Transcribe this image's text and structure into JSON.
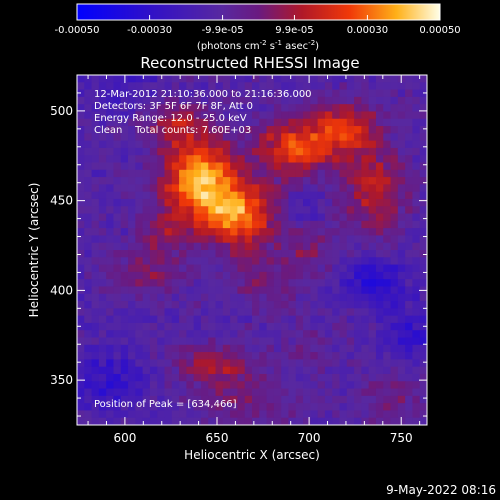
{
  "chart_data": {
    "type": "heatmap",
    "title": "Reconstructed RHESSI Image",
    "xlabel": "Heliocentric X (arcsec)",
    "ylabel": "Heliocentric Y (arcsec)",
    "xlim": [
      574,
      764
    ],
    "ylim": [
      325,
      520
    ],
    "x_ticks": [
      {
        "value": 600,
        "label": "600"
      },
      {
        "value": 650,
        "label": "650"
      },
      {
        "value": 700,
        "label": "700"
      },
      {
        "value": 750,
        "label": "750"
      }
    ],
    "y_ticks": [
      {
        "value": 350,
        "label": "350"
      },
      {
        "value": 400,
        "label": "400"
      },
      {
        "value": 450,
        "label": "450"
      },
      {
        "value": 500,
        "label": "500"
      }
    ],
    "colorbar": {
      "range": [
        -0.0005,
        0.0005
      ],
      "ticks": [
        {
          "value": -0.0005,
          "label": "-0.00050"
        },
        {
          "value": -0.0003,
          "label": "-0.00030"
        },
        {
          "value": -9.9e-05,
          "label": "-9.9e-05"
        },
        {
          "value": 9.9e-05,
          "label": "9.9e-05"
        },
        {
          "value": 0.0003,
          "label": "0.00030"
        },
        {
          "value": 0.0005,
          "label": "0.00050"
        }
      ],
      "unit_main": "(photons cm",
      "unit_exp1": "-2",
      "unit_mid1": " s",
      "unit_exp2": "-1",
      "unit_mid2": " asec",
      "unit_exp3": "-2",
      "unit_end": ")"
    },
    "annotations": [
      "12-Mar-2012 21:10:36.000 to 21:16:36.000",
      "Detectors: 3F 5F 6F 7F 8F, Att 0",
      "Energy Range: 12.0 - 25.0 keV",
      "Clean    Total counts: 7.60E+03"
    ],
    "peak_label": "Position of Peak = [634,466]",
    "peak": [
      634,
      466
    ],
    "sources": [
      {
        "x": 640,
        "y": 462,
        "amp": 0.0005,
        "sx": 14,
        "sy": 16
      },
      {
        "x": 662,
        "y": 442,
        "amp": 0.00042,
        "sx": 14,
        "sy": 13
      },
      {
        "x": 692,
        "y": 480,
        "amp": 0.00036,
        "sx": 14,
        "sy": 11
      },
      {
        "x": 720,
        "y": 490,
        "amp": 0.00034,
        "sx": 12,
        "sy": 10
      },
      {
        "x": 735,
        "y": 455,
        "amp": 0.00026,
        "sx": 12,
        "sy": 16
      },
      {
        "x": 628,
        "y": 493,
        "amp": 0.0002,
        "sx": 12,
        "sy": 8
      },
      {
        "x": 620,
        "y": 432,
        "amp": 0.00018,
        "sx": 8,
        "sy": 8
      },
      {
        "x": 612,
        "y": 410,
        "amp": 0.00015,
        "sx": 16,
        "sy": 9
      },
      {
        "x": 650,
        "y": 358,
        "amp": 0.00022,
        "sx": 16,
        "sy": 8
      },
      {
        "x": 676,
        "y": 405,
        "amp": 0.00013,
        "sx": 13,
        "sy": 10
      },
      {
        "x": 700,
        "y": 425,
        "amp": 0.00014,
        "sx": 10,
        "sy": 10
      },
      {
        "x": 665,
        "y": 338,
        "amp": 0.00012,
        "sx": 20,
        "sy": 8
      },
      {
        "x": 745,
        "y": 340,
        "amp": 0.00012,
        "sx": 12,
        "sy": 10
      },
      {
        "x": 700,
        "y": 368,
        "amp": 0.0001,
        "sx": 10,
        "sy": 8
      }
    ],
    "cold_spots": [
      {
        "x": 736,
        "y": 405,
        "amp": 0.00022,
        "sx": 11,
        "sy": 9
      },
      {
        "x": 590,
        "y": 350,
        "amp": 0.00016,
        "sx": 16,
        "sy": 12
      },
      {
        "x": 755,
        "y": 375,
        "amp": 0.00016,
        "sx": 10,
        "sy": 12
      },
      {
        "x": 598,
        "y": 515,
        "amp": 0.00012,
        "sx": 12,
        "sy": 10
      },
      {
        "x": 700,
        "y": 445,
        "amp": 0.0001,
        "sx": 8,
        "sy": 8
      }
    ],
    "background": -0.00012
  },
  "footer": {
    "timestamp": "9-May-2022 08:16"
  }
}
